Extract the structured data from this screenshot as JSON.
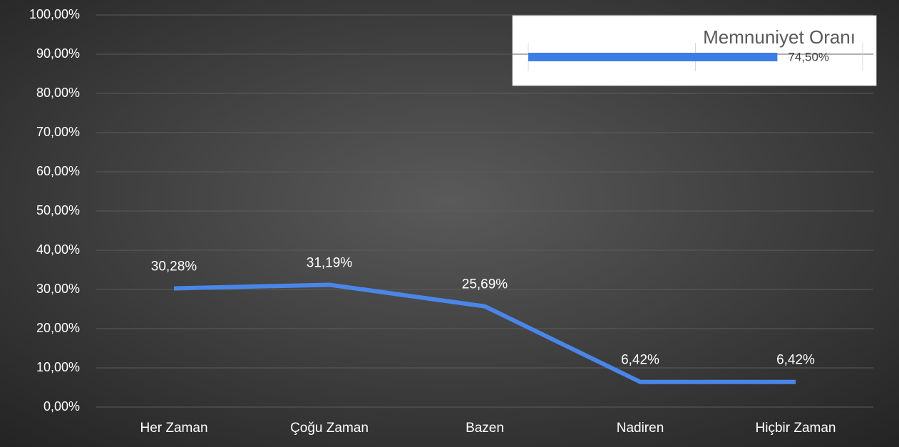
{
  "chart_data": [
    {
      "type": "line",
      "categories": [
        "Her Zaman",
        "Çoğu Zaman",
        "Bazen",
        "Nadiren",
        "Hiçbir Zaman"
      ],
      "values": [
        30.28,
        31.19,
        25.69,
        6.42,
        6.42
      ],
      "value_labels": [
        "30,28%",
        "31,19%",
        "25,69%",
        "6,42%",
        "6,42%"
      ],
      "color": "#4a86e8",
      "ylim": [
        0,
        100
      ],
      "yticks": [
        {
          "value": 0,
          "label": "0,00%"
        },
        {
          "value": 10,
          "label": "10,00%"
        },
        {
          "value": 20,
          "label": "20,00%"
        },
        {
          "value": 30,
          "label": "30,00%"
        },
        {
          "value": 40,
          "label": "40,00%"
        },
        {
          "value": 50,
          "label": "50,00%"
        },
        {
          "value": 60,
          "label": "60,00%"
        },
        {
          "value": 70,
          "label": "70,00%"
        },
        {
          "value": 80,
          "label": "80,00%"
        },
        {
          "value": 90,
          "label": "90,00%"
        },
        {
          "value": 100,
          "label": "100,00%"
        }
      ],
      "grid": true
    },
    {
      "type": "bar",
      "orientation": "horizontal",
      "title": "Memnuniyet Oranı",
      "values": [
        74.5
      ],
      "value_labels": [
        "74,50%"
      ],
      "color": "#3d7de6",
      "xlim": [
        0,
        100
      ],
      "xticks": [
        0,
        50,
        100
      ],
      "grid": true
    }
  ]
}
